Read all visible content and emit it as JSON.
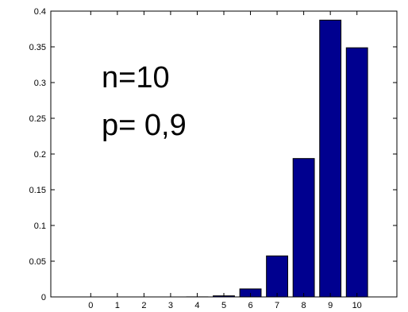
{
  "chart_data": {
    "type": "bar",
    "categories": [
      "0",
      "1",
      "2",
      "3",
      "4",
      "5",
      "6",
      "7",
      "8",
      "9",
      "10"
    ],
    "values": [
      0.0,
      0.0,
      0.0,
      0.0,
      0.0001,
      0.0015,
      0.0112,
      0.0574,
      0.1937,
      0.3874,
      0.3487
    ],
    "title": "",
    "xlabel": "",
    "ylabel": "",
    "ylim": [
      0,
      0.4
    ],
    "xlim": [
      -1.5,
      11.5
    ],
    "yticks": [
      "0",
      "0.05",
      "0.1",
      "0.15",
      "0.2",
      "0.25",
      "0.3",
      "0.35",
      "0.4"
    ],
    "grid": false,
    "annotations": [
      "n=10",
      "p= 0,9"
    ],
    "bar_color": "#00008f",
    "bar_edge_color": "#000000"
  }
}
